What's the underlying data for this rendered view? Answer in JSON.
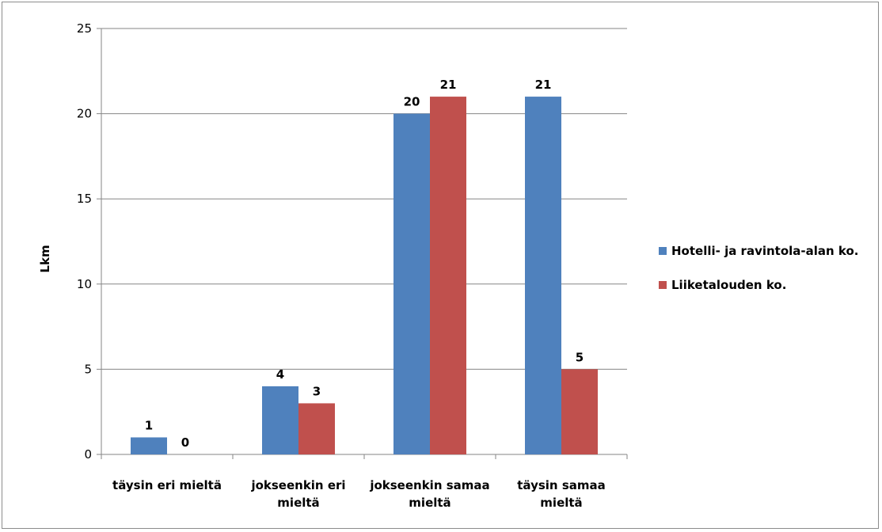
{
  "chart_data": {
    "type": "bar",
    "title": "",
    "xlabel": "",
    "ylabel": "Lkm",
    "ylim": [
      0,
      25
    ],
    "yticks": [
      0,
      5,
      10,
      15,
      20,
      25
    ],
    "grid": true,
    "legend_position": "right",
    "categories": [
      [
        "täysin eri mieltä"
      ],
      [
        "jokseenkin eri",
        "mieltä"
      ],
      [
        "jokseenkin samaa",
        "mieltä"
      ],
      [
        "täysin samaa",
        "mieltä"
      ]
    ],
    "series": [
      {
        "name": "Hotelli- ja ravintola-alan ko.",
        "color": "#4f81bd",
        "values": [
          1,
          4,
          20,
          21
        ]
      },
      {
        "name": "Liiketalouden ko.",
        "color": "#c0504d",
        "values": [
          0,
          3,
          21,
          5
        ]
      }
    ]
  }
}
